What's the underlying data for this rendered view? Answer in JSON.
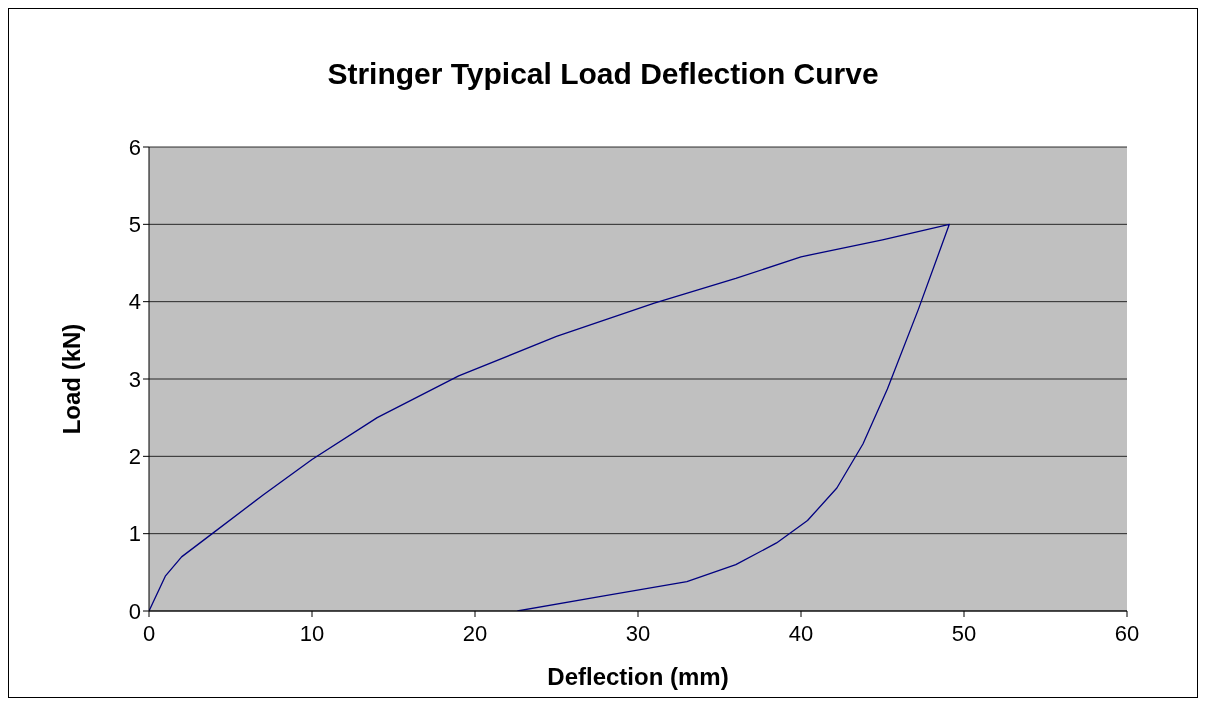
{
  "chart_data": {
    "type": "line",
    "title": "Stringer Typical Load Deflection Curve",
    "xlabel": "Deflection (mm)",
    "ylabel": "Load (kN)",
    "series": [
      {
        "color": "#000080",
        "x": [
          0,
          1,
          2,
          4,
          7,
          10,
          14,
          19,
          25,
          31,
          36,
          40,
          45,
          49.1,
          47.2,
          45.3,
          43.8,
          42.2,
          40.4,
          38.5,
          36,
          33,
          28,
          22.6
        ],
        "values": [
          0,
          0.45,
          0.7,
          1.02,
          1.5,
          1.96,
          2.5,
          3.04,
          3.55,
          3.98,
          4.3,
          4.58,
          4.8,
          5.0,
          3.9,
          2.87,
          2.16,
          1.59,
          1.17,
          0.88,
          0.6,
          0.38,
          0.2,
          0
        ]
      }
    ],
    "xlim": [
      0,
      60
    ],
    "xticks": [
      0,
      10,
      20,
      30,
      40,
      50,
      60
    ],
    "ylim": [
      0,
      6
    ],
    "yticks": [
      0,
      1,
      2,
      3,
      4,
      5,
      6
    ],
    "grid": "y",
    "marker": "none",
    "line_style": "solid"
  }
}
